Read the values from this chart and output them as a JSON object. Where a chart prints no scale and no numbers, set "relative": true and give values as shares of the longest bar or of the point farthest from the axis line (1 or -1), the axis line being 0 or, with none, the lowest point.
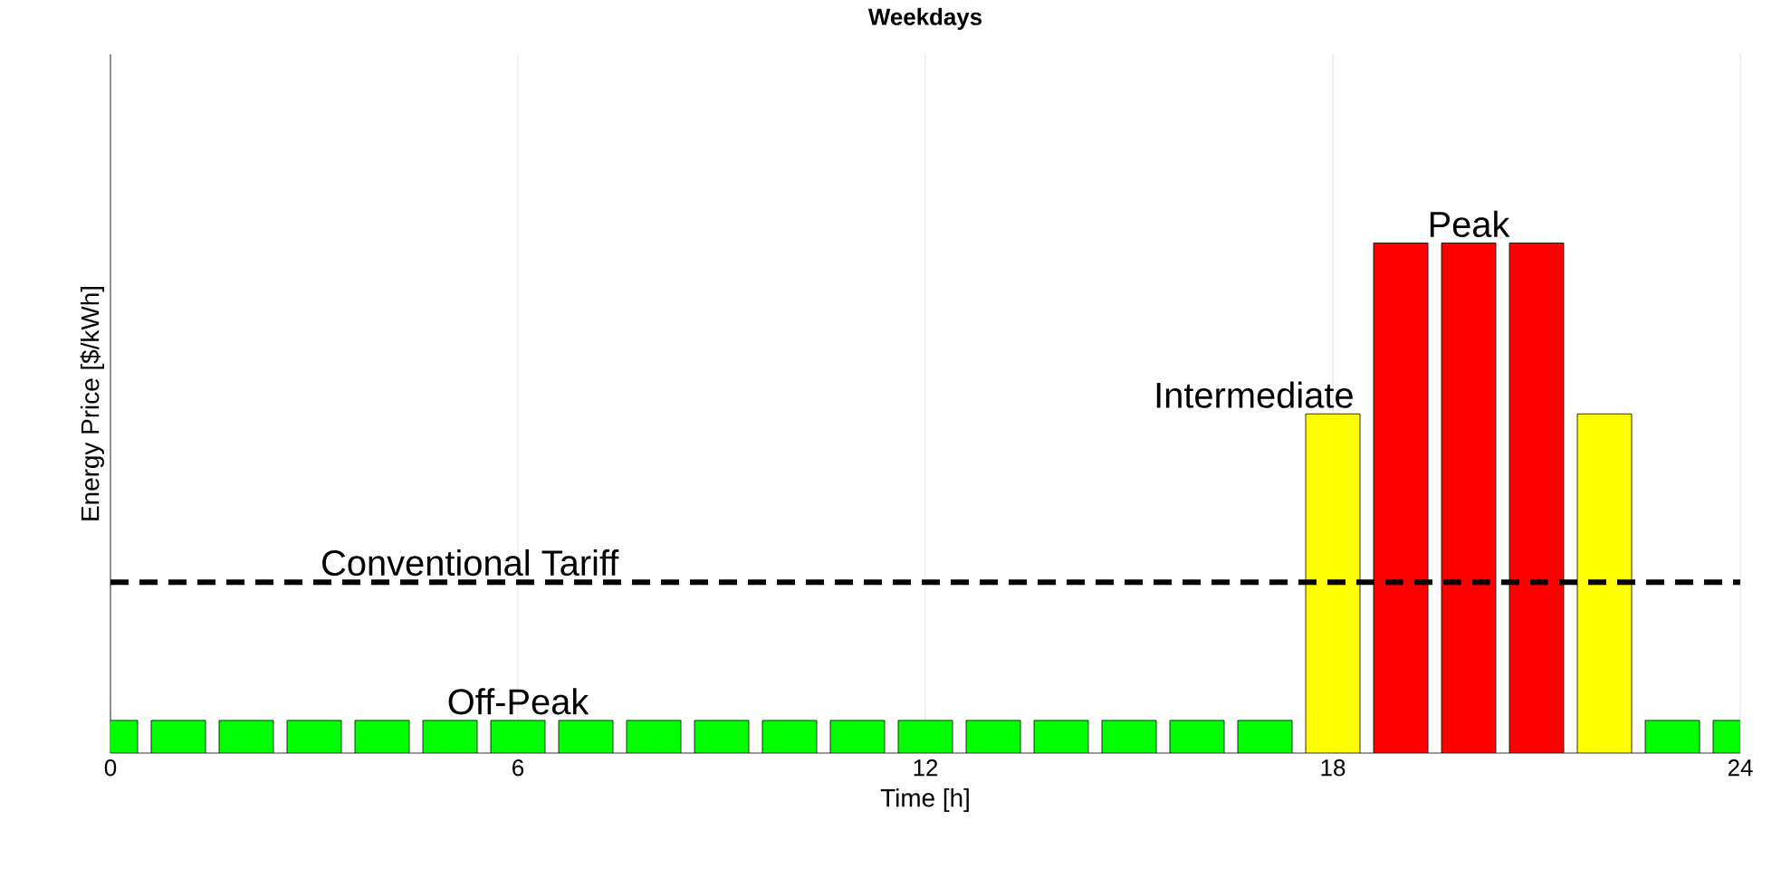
{
  "chart_data": {
    "type": "bar",
    "title": "Weekdays",
    "xlabel": "Time [h]",
    "ylabel": "Energy Price [$/kWh]",
    "relative": true,
    "x": [
      0,
      1,
      2,
      3,
      4,
      5,
      6,
      7,
      8,
      9,
      10,
      11,
      12,
      13,
      14,
      15,
      16,
      17,
      18,
      19,
      20,
      21,
      22,
      23,
      24
    ],
    "values": [
      0.064,
      0.064,
      0.064,
      0.064,
      0.064,
      0.064,
      0.064,
      0.064,
      0.064,
      0.064,
      0.064,
      0.064,
      0.064,
      0.064,
      0.064,
      0.064,
      0.064,
      0.064,
      0.665,
      1,
      1,
      1,
      0.665,
      0.064,
      0.064
    ],
    "colors": [
      "#00ff00",
      "#00ff00",
      "#00ff00",
      "#00ff00",
      "#00ff00",
      "#00ff00",
      "#00ff00",
      "#00ff00",
      "#00ff00",
      "#00ff00",
      "#00ff00",
      "#00ff00",
      "#00ff00",
      "#00ff00",
      "#00ff00",
      "#00ff00",
      "#00ff00",
      "#00ff00",
      "#ffff00",
      "#ff0000",
      "#ff0000",
      "#ff0000",
      "#ffff00",
      "#00ff00",
      "#00ff00"
    ],
    "xlim": [
      0,
      24
    ],
    "xticks": [
      0,
      6,
      12,
      18,
      24
    ],
    "grid": "x",
    "ref_lines": [
      {
        "axis": "y",
        "value": 0.335,
        "label": "Conventional Tariff",
        "color": "#000000",
        "line_style": "dashed"
      }
    ],
    "annotations": [
      {
        "text": "Peak",
        "x": 20,
        "y": 1
      },
      {
        "text": "Intermediate",
        "x": 18,
        "y": 0.665
      },
      {
        "text": "Off-Peak",
        "x": 6,
        "y": 0.064
      }
    ]
  }
}
